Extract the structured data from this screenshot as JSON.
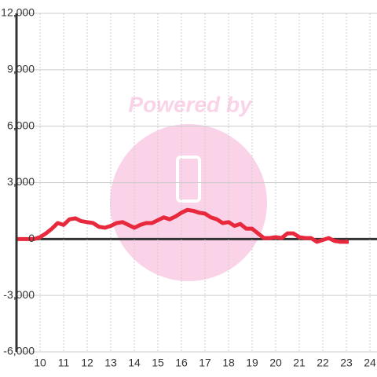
{
  "chart_data": {
    "type": "line",
    "watermark": "Powered by",
    "x": [
      9,
      9.25,
      9.5,
      9.75,
      10,
      10.25,
      10.5,
      10.75,
      11,
      11.25,
      11.5,
      11.75,
      12,
      12.25,
      12.5,
      12.75,
      13,
      13.25,
      13.5,
      13.75,
      14,
      14.25,
      14.5,
      14.75,
      15,
      15.25,
      15.5,
      15.75,
      16,
      16.25,
      16.5,
      16.75,
      17,
      17.25,
      17.5,
      17.75,
      18,
      18.25,
      18.5,
      18.75,
      19,
      19.25,
      19.5,
      19.75,
      20,
      20.25,
      20.5,
      20.75,
      21,
      21.25,
      21.5,
      21.75,
      22,
      22.25,
      22.5,
      22.75,
      23,
      23.1
    ],
    "series": [
      {
        "color": "#e8283c",
        "values": [
          0,
          0,
          0,
          0,
          100,
          300,
          550,
          850,
          750,
          1050,
          1100,
          950,
          900,
          850,
          650,
          600,
          700,
          850,
          900,
          750,
          600,
          750,
          850,
          850,
          1000,
          1150,
          1050,
          1200,
          1400,
          1550,
          1500,
          1400,
          1350,
          1150,
          1050,
          850,
          900,
          700,
          800,
          550,
          550,
          300,
          50,
          50,
          100,
          50,
          300,
          300,
          100,
          50,
          50,
          -150,
          -50,
          50,
          -100,
          -150,
          -150,
          -150
        ]
      }
    ],
    "xlim": [
      9,
      24.3
    ],
    "xticks": [
      10,
      11,
      12,
      13,
      14,
      15,
      16,
      17,
      18,
      19,
      20,
      21,
      22,
      23,
      24
    ],
    "ylim": [
      -6000,
      12000
    ],
    "yticks": [
      {
        "value": -6000,
        "label": "-6,000"
      },
      {
        "value": -3000,
        "label": "-3,000"
      },
      0,
      {
        "value": 3000,
        "label": "3,000"
      },
      {
        "value": 6000,
        "label": "6,000"
      },
      {
        "value": 9000,
        "label": "9,000"
      },
      {
        "value": 12000,
        "label": "12,000"
      }
    ],
    "grid": true
  }
}
